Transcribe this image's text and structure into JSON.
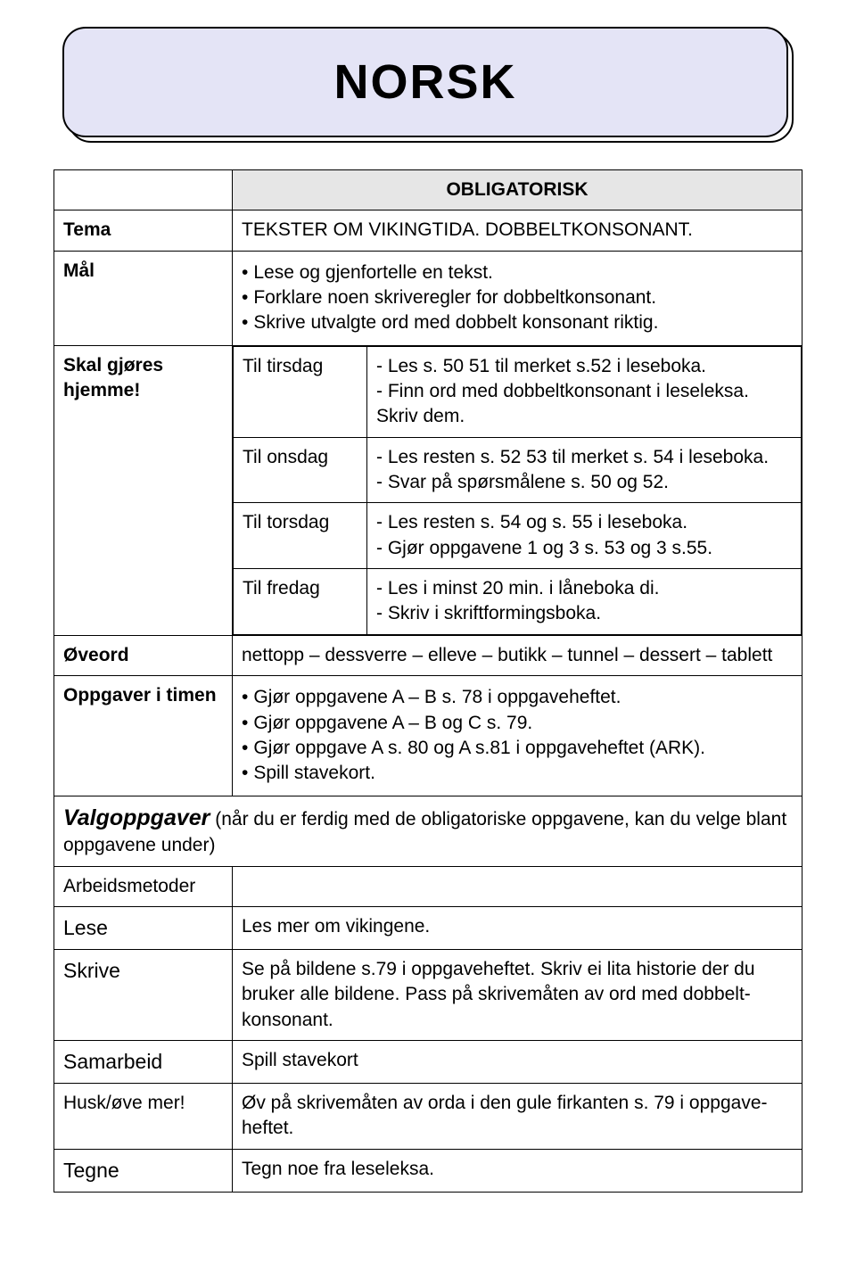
{
  "title": "NORSK",
  "colors": {
    "title_bg": "#e4e4f6",
    "header_bg": "#e6e6e6",
    "border": "#000000",
    "page_bg": "#ffffff",
    "text": "#000000"
  },
  "fonts": {
    "family": "Comic Sans MS",
    "title_size_pt": 40,
    "label_size_pt": 17,
    "body_size_pt": 16
  },
  "labels": {
    "oblig": "OBLIGATORISK",
    "tema": "Tema",
    "mal": "Mål",
    "skal": "Skal gjøres hjemme!",
    "oveord": "Øveord",
    "opp_i_timen": "Oppgaver i timen",
    "valg": "Valgoppgaver",
    "arbeids": "Arbeidsmetoder",
    "lese": "Lese",
    "skrive": "Skrive",
    "samarbeid": "Samarbeid",
    "husk": "Husk/øve mer!",
    "tegne": "Tegne"
  },
  "tema_text": "TEKSTER OM VIKINGTIDA. DOBBELTKONSONANT.",
  "mal_items": [
    "Lese og gjenfortelle en tekst.",
    "Forklare noen skriveregler for dobbeltkonsonant.",
    "Skrive utvalgte ord med dobbelt konsonant riktig."
  ],
  "homework": {
    "tirsdag": {
      "label": "Til tirsdag",
      "l1": "- Les s. 50 51 til merket s.52 i leseboka.",
      "l2": "- Finn ord med dobbeltkonsonant i leseleksa.",
      "l3": "Skriv dem."
    },
    "onsdag": {
      "label": "Til onsdag",
      "l1": "- Les resten s. 52 53 til merket s. 54 i leseboka.",
      "l2": "- Svar på spørsmålene s. 50 og 52."
    },
    "torsdag": {
      "label": "Til torsdag",
      "l1": "- Les resten s. 54 og s. 55 i leseboka.",
      "l2": "- Gjør oppgavene 1 og 3 s. 53 og 3 s.55."
    },
    "fredag": {
      "label": "Til fredag",
      "l1": "- Les i minst 20 min. i låneboka di.",
      "l2": "- Skriv i skriftformingsboka."
    }
  },
  "oveord_text": "nettopp – dessverre – elleve – butikk – tunnel – dessert – tablett",
  "opp_i_timen_items": [
    "Gjør oppgavene A – B s. 78 i oppgaveheftet.",
    "Gjør oppgavene A – B og C s. 79.",
    "Gjør oppgave A s. 80 og A s.81 i oppgaveheftet (ARK).",
    "Spill stavekort."
  ],
  "valg_text": "(når du er ferdig med de obligatoriske oppgavene, kan du velge blant oppgavene under)",
  "lese_text": "Les mer om vikingene.",
  "skrive_text": "Se på bildene s.79 i oppgaveheftet. Skriv ei lita historie der du bruker alle bildene. Pass på skrivemåten av ord med dobbelt-konsonant.",
  "samarbeid_text": "Spill stavekort",
  "husk_text": "Øv på skrivemåten av orda i den gule firkanten s. 79 i oppgave-heftet.",
  "tegne_text": "Tegn noe fra leseleksa."
}
